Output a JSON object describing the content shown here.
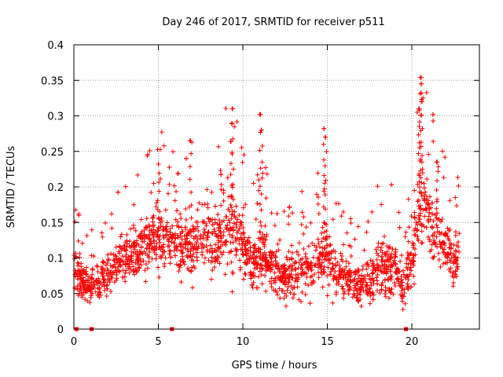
{
  "chart_data": {
    "type": "scatter",
    "title": "Day 246 of 2017, SRMTID for receiver p511",
    "xlabel": "GPS time / hours",
    "ylabel": "SRMTID / TECUs",
    "xlim": [
      0,
      24
    ],
    "ylim": [
      0,
      0.4
    ],
    "xticks": [
      "0",
      "5",
      "10",
      "15",
      "20"
    ],
    "yticks": [
      "0",
      "0.05",
      "0.1",
      "0.15",
      "0.2",
      "0.25",
      "0.3",
      "0.35",
      "0.4"
    ],
    "grid": true,
    "marker": "+",
    "color": "#ff0000",
    "approximate_profile": {
      "x": [
        0,
        0.5,
        1,
        1.5,
        2,
        2.5,
        3,
        3.5,
        4,
        4.5,
        5,
        5.5,
        6,
        6.5,
        7,
        7.5,
        8,
        8.5,
        9,
        9.5,
        10,
        10.5,
        11,
        11.5,
        12,
        12.5,
        13,
        13.5,
        14,
        14.5,
        15,
        15.5,
        16,
        16.5,
        17,
        17.5,
        18,
        18.5,
        19,
        19.5,
        20,
        20.5,
        21,
        21.5,
        22,
        22.5,
        22.8
      ],
      "center": [
        0.09,
        0.065,
        0.06,
        0.07,
        0.08,
        0.09,
        0.1,
        0.11,
        0.115,
        0.12,
        0.13,
        0.13,
        0.13,
        0.12,
        0.12,
        0.125,
        0.13,
        0.13,
        0.14,
        0.14,
        0.12,
        0.09,
        0.1,
        0.1,
        0.08,
        0.07,
        0.08,
        0.085,
        0.09,
        0.1,
        0.11,
        0.08,
        0.07,
        0.07,
        0.065,
        0.065,
        0.09,
        0.08,
        0.085,
        0.06,
        0.1,
        0.17,
        0.16,
        0.13,
        0.12,
        0.09,
        0.11
      ],
      "spread": [
        0.03,
        0.025,
        0.025,
        0.025,
        0.03,
        0.03,
        0.035,
        0.035,
        0.035,
        0.04,
        0.045,
        0.045,
        0.045,
        0.045,
        0.05,
        0.045,
        0.04,
        0.045,
        0.055,
        0.055,
        0.045,
        0.035,
        0.04,
        0.04,
        0.03,
        0.03,
        0.035,
        0.035,
        0.035,
        0.04,
        0.045,
        0.035,
        0.03,
        0.03,
        0.03,
        0.03,
        0.04,
        0.04,
        0.035,
        0.03,
        0.04,
        0.06,
        0.055,
        0.045,
        0.04,
        0.035,
        0.035
      ]
    },
    "spikes": [
      {
        "x": 6.9,
        "y": 0.265
      },
      {
        "x": 9.4,
        "y": 0.31
      },
      {
        "x": 9.3,
        "y": 0.264
      },
      {
        "x": 11.05,
        "y": 0.302
      },
      {
        "x": 11.1,
        "y": 0.28
      },
      {
        "x": 14.8,
        "y": 0.282
      },
      {
        "x": 14.9,
        "y": 0.27
      },
      {
        "x": 20.5,
        "y": 0.354
      },
      {
        "x": 20.55,
        "y": 0.345
      },
      {
        "x": 20.6,
        "y": 0.32
      },
      {
        "x": 20.45,
        "y": 0.31
      },
      {
        "x": 5.0,
        "y": 0.232
      },
      {
        "x": 21.5,
        "y": 0.235
      }
    ],
    "gap_markers_x": [
      0.15,
      1.05,
      5.8,
      19.65
    ]
  }
}
